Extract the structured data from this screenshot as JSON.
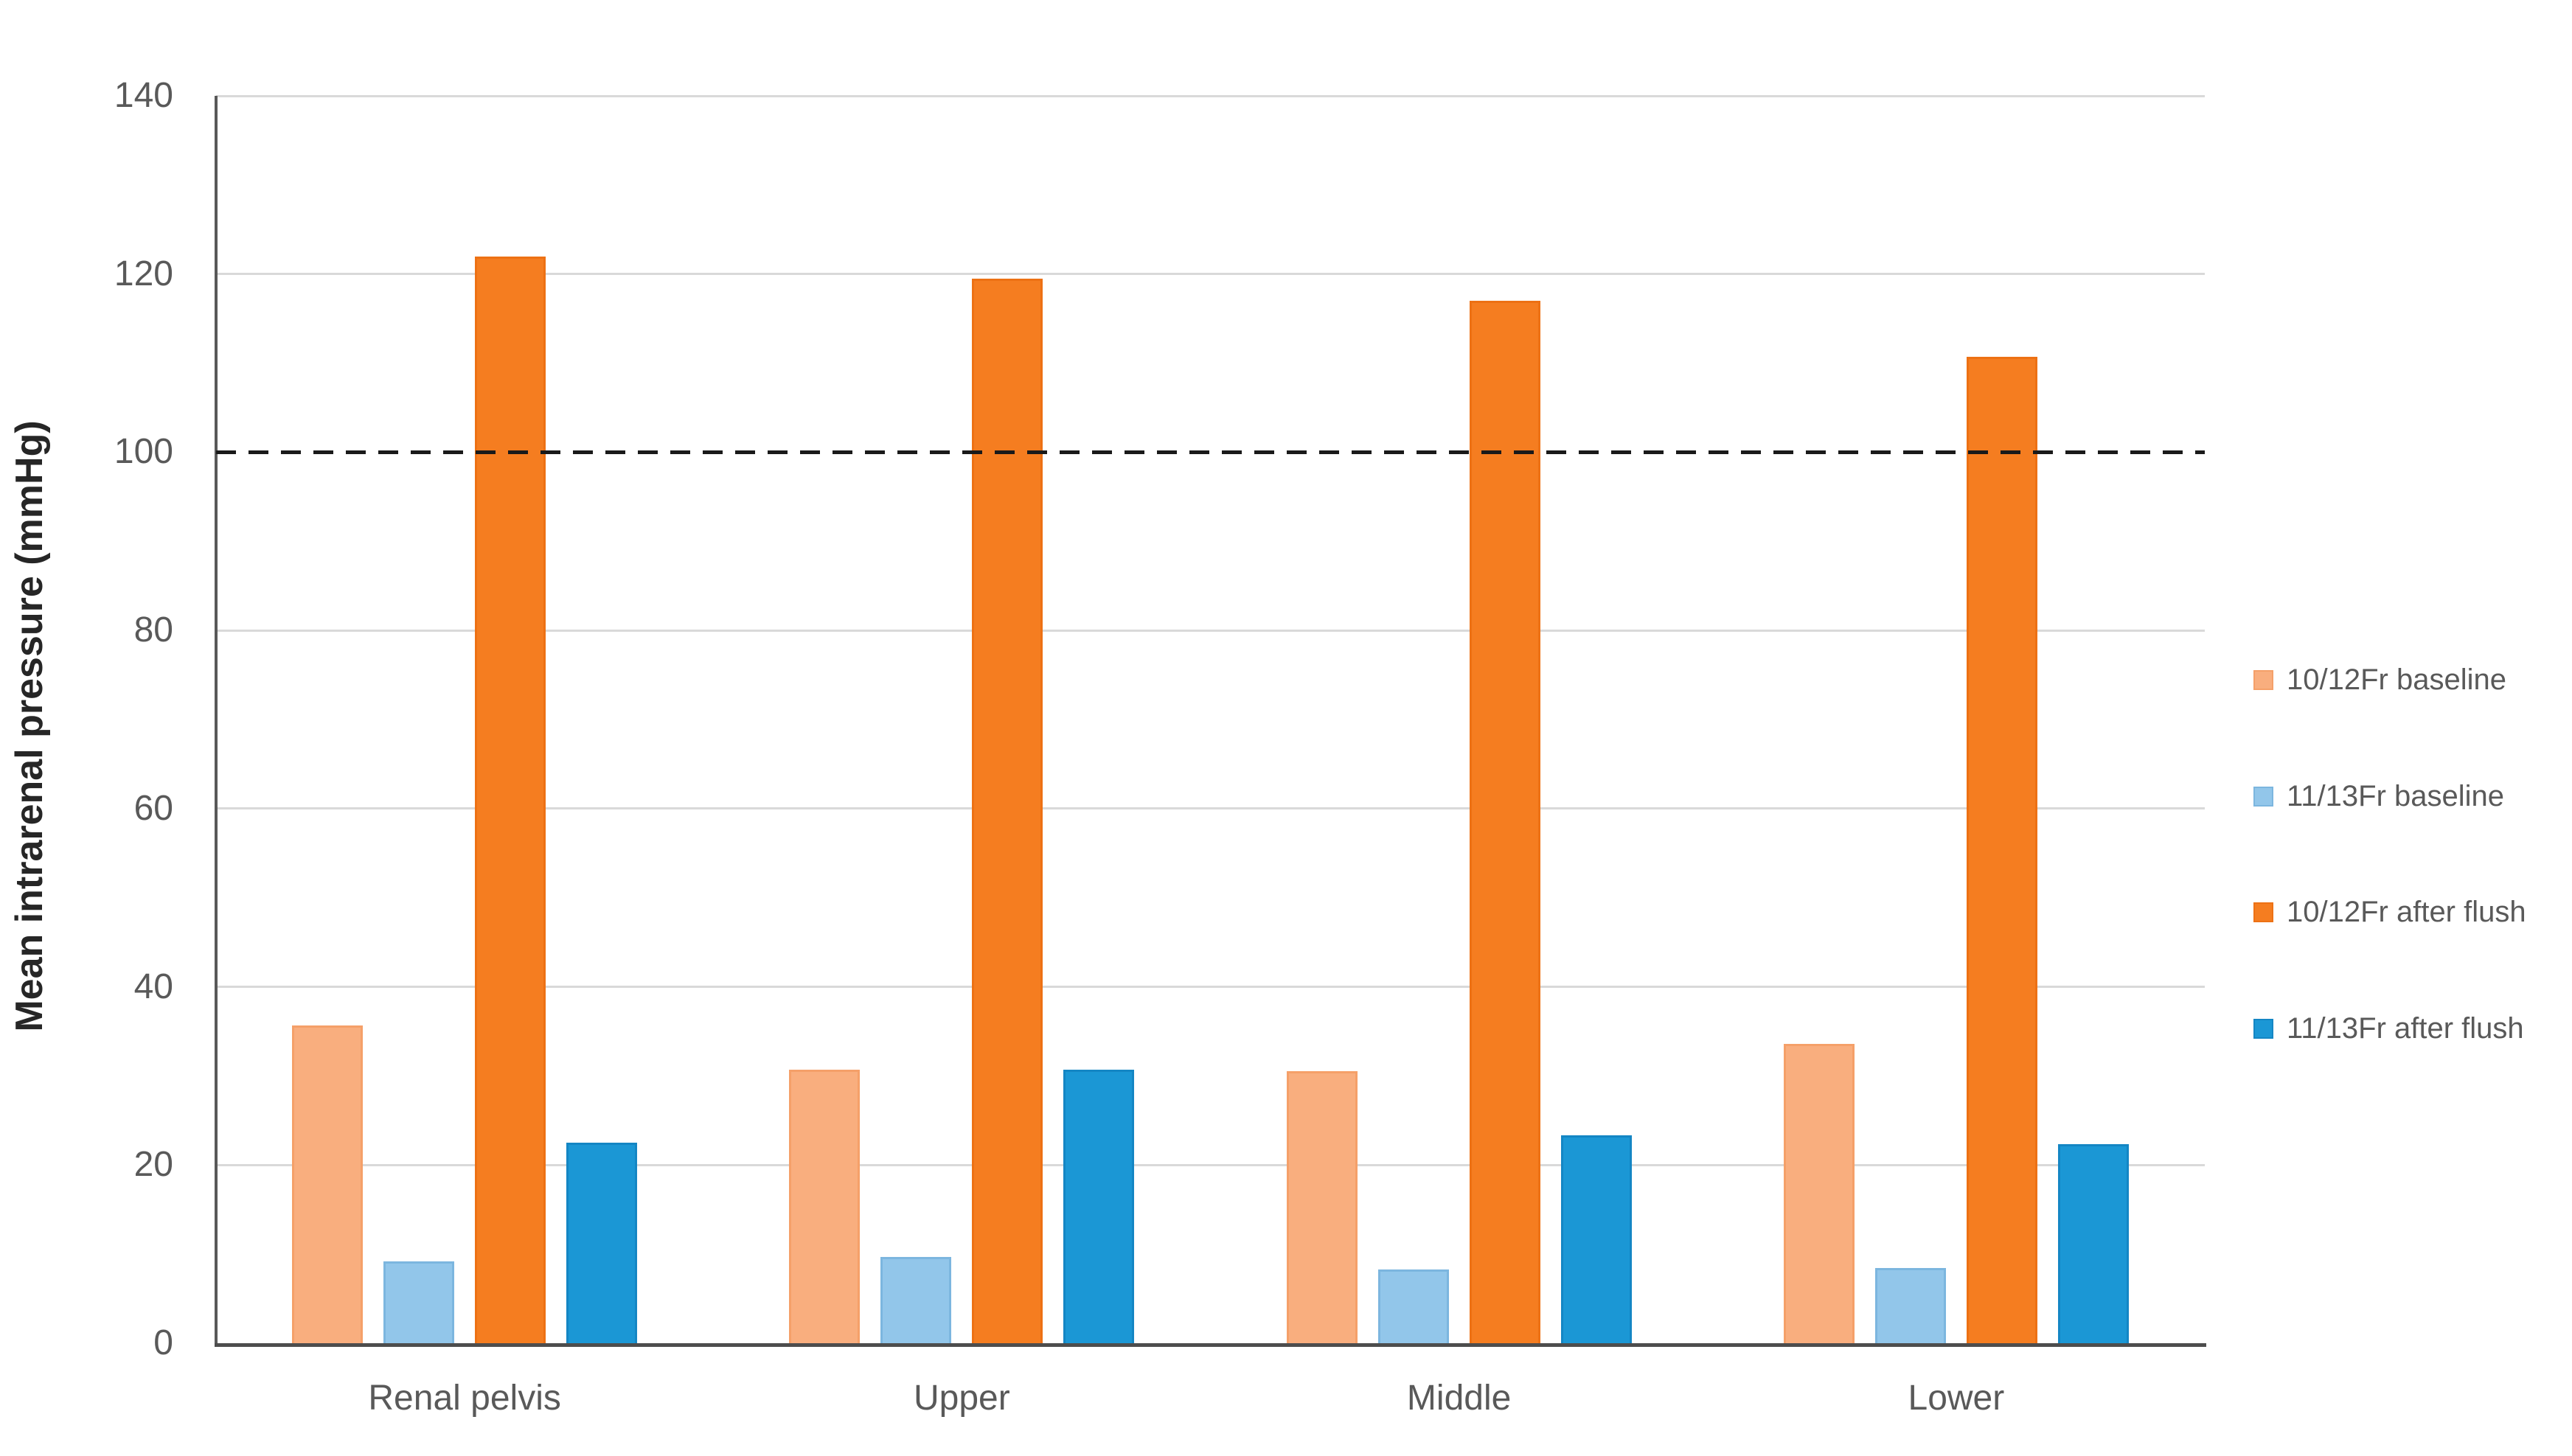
{
  "chart_data": {
    "type": "bar",
    "title": "",
    "xlabel": "",
    "ylabel": "Mean intrarenal pressure (mmHg)",
    "ylim": [
      0,
      140
    ],
    "yticks": [
      0,
      20,
      40,
      60,
      80,
      100,
      120,
      140
    ],
    "grid": true,
    "legend_position": "right",
    "reference_line": {
      "y": 100,
      "style": "dashed",
      "color": "#1a1a1a"
    },
    "categories": [
      "Renal pelvis",
      "Upper",
      "Middle",
      "Lower"
    ],
    "series": [
      {
        "name": "10/12Fr baseline",
        "color": "#F9AE7E",
        "border_color": "#F5A069",
        "values": [
          35.7,
          30.7,
          30.5,
          33.6
        ]
      },
      {
        "name": "11/13Fr baseline",
        "color": "#92C6EA",
        "border_color": "#7CB6DF",
        "values": [
          9.2,
          9.7,
          8.3,
          8.4
        ]
      },
      {
        "name": "10/12Fr after flush",
        "color": "#F57D20",
        "border_color": "#ED7114",
        "values": [
          122.0,
          119.5,
          117.0,
          110.7
        ]
      },
      {
        "name": "11/13Fr after flush",
        "color": "#1B97D5",
        "border_color": "#1486C4",
        "values": [
          22.5,
          30.7,
          23.3,
          22.3
        ]
      }
    ],
    "axis_colors": {
      "gridline": "#d9d9d9",
      "y_axis": "#595959",
      "x_axis": "#4d4d4d",
      "tick_text": "#595959",
      "legend_text": "#595959",
      "title_text": "#262626"
    }
  }
}
